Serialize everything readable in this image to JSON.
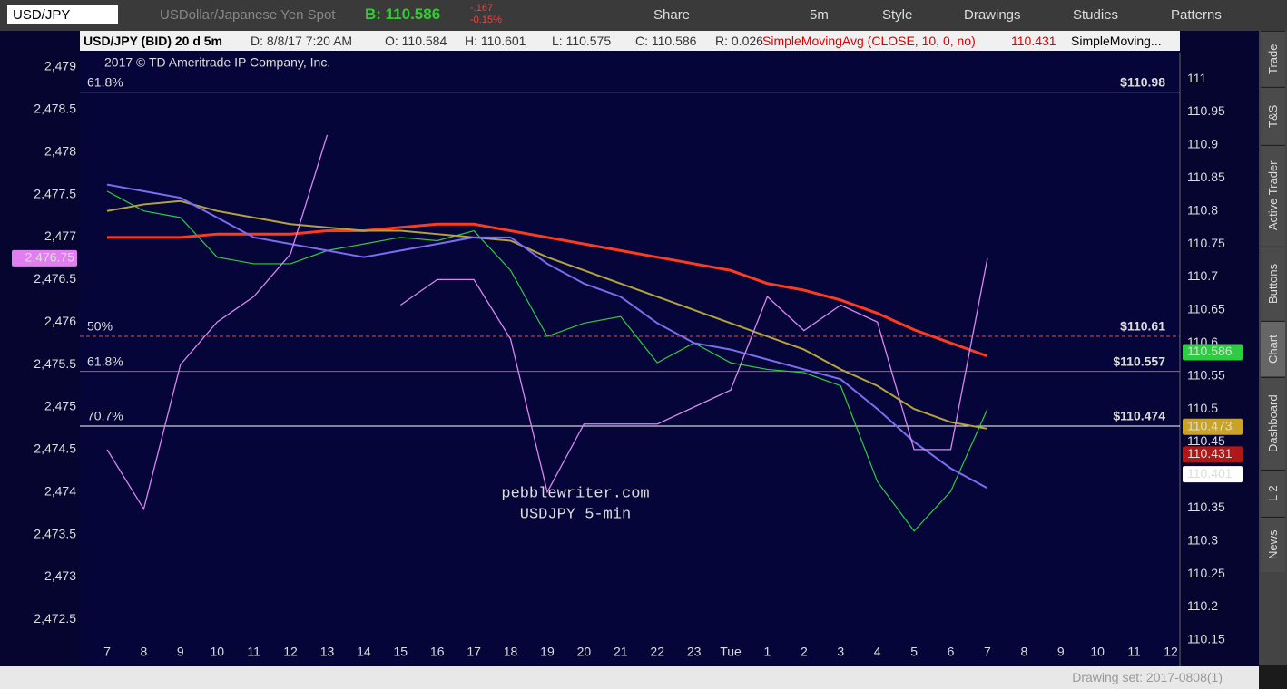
{
  "toolbar": {
    "symbol": "USD/JPY",
    "description": "USDollar/Japanese Yen Spot",
    "bid": "B: 110.586",
    "change": "-.167",
    "change_pct": "-0.15%",
    "buttons": [
      "Share",
      "5m",
      "Style",
      "Drawings",
      "Studies",
      "Patterns"
    ]
  },
  "info_bar": [
    "USD/JPY (BID) 20 d 5m",
    "D: 8/8/17 7:20 AM",
    "O: 110.584",
    "H: 110.601",
    "L: 110.575",
    "C: 110.586",
    "R: 0.026",
    "SimpleMovingAvg (CLOSE, 10, 0, no)",
    "110.431",
    "SimpleMoving..."
  ],
  "side_tabs": [
    "Trade",
    "T&S",
    "Active Trader",
    "Buttons",
    "Chart",
    "Dashboard",
    "L 2",
    "News"
  ],
  "footer": {
    "drawing_set": "Drawing set: 2017-0808(1)"
  },
  "chart_data": {
    "type": "line",
    "copyright": "2017 © TD Ameritrade IP Company, Inc.",
    "watermark": [
      "pebblewriter.com",
      "USDJPY 5-min"
    ],
    "categories": [
      "7",
      "8",
      "9",
      "10",
      "11",
      "12",
      "13",
      "14",
      "15",
      "16",
      "17",
      "18",
      "19",
      "20",
      "21",
      "22",
      "23",
      "Tue",
      "1",
      "2",
      "3",
      "4",
      "5",
      "6",
      "7",
      "8",
      "9",
      "10",
      "11",
      "12"
    ],
    "ylim": [
      2471.95,
      2479.17
    ],
    "yticks": [
      {
        "value": 2472.5,
        "label": "2,472.5"
      },
      {
        "value": 2473,
        "label": "2,473"
      },
      {
        "value": 2473.5,
        "label": "2,473.5"
      },
      {
        "value": 2474,
        "label": "2,474"
      },
      {
        "value": 2474.5,
        "label": "2,474.5"
      },
      {
        "value": 2475,
        "label": "2,475"
      },
      {
        "value": 2475.5,
        "label": "2,475.5"
      },
      {
        "value": 2476,
        "label": "2,476"
      },
      {
        "value": 2476.5,
        "label": "2,476.5"
      },
      {
        "value": 2477,
        "label": "2,477"
      },
      {
        "value": 2477.5,
        "label": "2,477.5"
      },
      {
        "value": 2478,
        "label": "2,478"
      },
      {
        "value": 2478.5,
        "label": "2,478.5"
      },
      {
        "value": 2479,
        "label": "2,479"
      }
    ],
    "y2lim": [
      110.11,
      111.04
    ],
    "y2ticks": [
      110.15,
      110.2,
      110.25,
      110.3,
      110.35,
      110.4,
      110.45,
      110.5,
      110.55,
      110.6,
      110.65,
      110.7,
      110.75,
      110.8,
      110.85,
      110.9,
      110.95,
      111
    ],
    "series": [
      {
        "color": "#2ecc40",
        "axis": "y2",
        "values": [
          110.83,
          110.8,
          110.79,
          110.73,
          110.72,
          110.72,
          110.74,
          110.75,
          110.76,
          110.755,
          110.77,
          110.71,
          110.61,
          110.63,
          110.64,
          110.57,
          110.6,
          110.57,
          110.56,
          110.555,
          110.535,
          110.39,
          110.315,
          110.375,
          110.5,
          null,
          null,
          null,
          null,
          null
        ]
      },
      {
        "color": "#ff3b1f",
        "axis": "y2",
        "values": [
          110.76,
          110.76,
          110.76,
          110.765,
          110.765,
          110.765,
          110.77,
          110.77,
          110.775,
          110.78,
          110.78,
          110.77,
          110.76,
          110.75,
          110.74,
          110.73,
          110.72,
          110.71,
          110.69,
          110.68,
          110.665,
          110.645,
          110.62,
          110.6,
          110.58,
          null,
          null,
          null,
          null,
          null
        ]
      },
      {
        "color": "#b5a33a",
        "axis": "y2",
        "values": [
          110.8,
          110.81,
          110.815,
          110.8,
          110.79,
          110.78,
          110.775,
          110.77,
          110.77,
          110.765,
          110.76,
          110.755,
          110.73,
          110.71,
          110.69,
          110.67,
          110.65,
          110.63,
          110.61,
          110.59,
          110.56,
          110.535,
          110.5,
          110.48,
          110.47,
          null,
          null,
          null,
          null,
          null
        ]
      },
      {
        "color": "#7b6cf0",
        "axis": "y2",
        "values": [
          110.84,
          110.83,
          110.82,
          110.79,
          110.76,
          110.75,
          110.74,
          110.73,
          110.74,
          110.75,
          110.76,
          110.76,
          110.72,
          110.69,
          110.67,
          110.63,
          110.6,
          110.59,
          110.575,
          110.56,
          110.545,
          110.5,
          110.45,
          110.41,
          110.38,
          null,
          null,
          null,
          null,
          null
        ]
      },
      {
        "color": "#d986f0",
        "axis": "y",
        "values": [
          2474.5,
          2473.8,
          2475.5,
          2476,
          2476.3,
          2476.8,
          2478.2,
          null,
          2476.2,
          2476.5,
          2476.5,
          2475.8,
          2474,
          2474.8,
          2474.8,
          2474.8,
          2475,
          2475.2,
          2476.3,
          2475.9,
          2476.2,
          2476,
          2474.5,
          2474.5,
          2476.75,
          null,
          null,
          null,
          null,
          null
        ]
      }
    ],
    "levels": [
      {
        "value": 110.98,
        "label": "61.8%",
        "price_label": "$110.98",
        "color": "#ffffff",
        "dashed": false
      },
      {
        "value": 110.61,
        "label": "50%",
        "price_label": "$110.61",
        "color": "#e0503a",
        "dashed": true
      },
      {
        "value": 110.557,
        "label": "61.8%",
        "price_label": "$110.557",
        "color": "#e0503a",
        "dashed": false
      },
      {
        "value": 110.474,
        "label": "70.7%",
        "price_label": "$110.474",
        "color": "#ffffff",
        "dashed": false
      }
    ],
    "price_badges": [
      {
        "value": 110.586,
        "color": "#2ecc40"
      },
      {
        "value": 110.473,
        "color": "#c9a227"
      },
      {
        "value": 110.431,
        "color": "#b01818"
      },
      {
        "value": 110.401,
        "color": "#ffffff"
      }
    ],
    "left_badge": {
      "value": 2476.75,
      "label": "2,476.75",
      "color": "#e27ff0"
    }
  }
}
